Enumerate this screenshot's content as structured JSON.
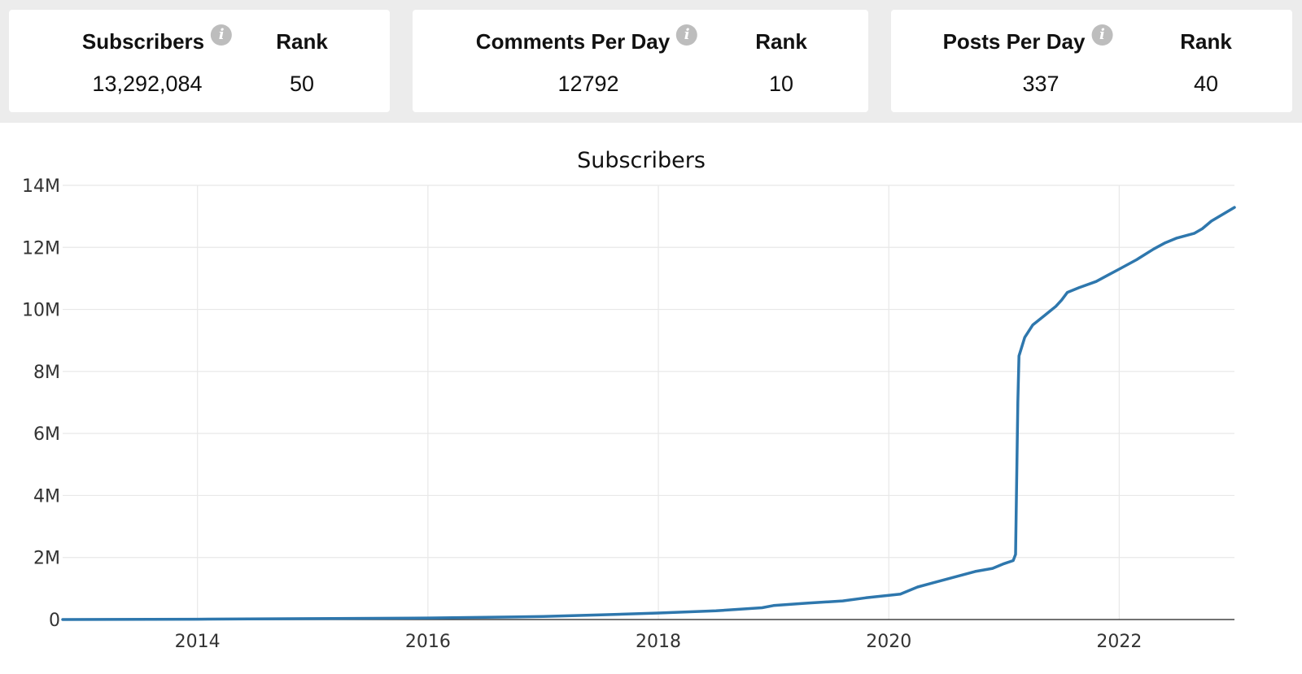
{
  "stats": [
    {
      "label": "Subscribers",
      "value": "13,292,084",
      "rank_label": "Rank",
      "rank": "50",
      "info_icon": "info-icon"
    },
    {
      "label": "Comments Per Day",
      "value": "12792",
      "rank_label": "Rank",
      "rank": "10",
      "info_icon": "info-icon"
    },
    {
      "label": "Posts Per Day",
      "value": "337",
      "rank_label": "Rank",
      "rank": "40",
      "info_icon": "info-icon"
    }
  ],
  "chart_data": {
    "type": "line",
    "title": "Subscribers",
    "xlabel": "",
    "ylabel": "",
    "xlim": [
      2012.83,
      2023.0
    ],
    "ylim": [
      0,
      14000000
    ],
    "x_ticks": [
      2014,
      2016,
      2018,
      2020,
      2022
    ],
    "x_tick_labels": [
      "2014",
      "2016",
      "2018",
      "2020",
      "2022"
    ],
    "y_ticks": [
      0,
      2000000,
      4000000,
      6000000,
      8000000,
      10000000,
      12000000,
      14000000
    ],
    "y_tick_labels": [
      "0",
      "2M",
      "4M",
      "6M",
      "8M",
      "10M",
      "12M",
      "14M"
    ],
    "grid": true,
    "line_color": "#2e77ad",
    "series": [
      {
        "x": [
          2012.83,
          2014.0,
          2015.0,
          2016.0,
          2016.5,
          2017.0,
          2017.5,
          2018.0,
          2018.5,
          2018.9,
          2019.0,
          2019.3,
          2019.6,
          2019.8,
          2020.1,
          2020.25,
          2020.5,
          2020.75,
          2020.9,
          2021.0,
          2021.08,
          2021.1,
          2021.12,
          2021.13,
          2021.18,
          2021.25,
          2021.35,
          2021.45,
          2021.5,
          2021.55,
          2021.65,
          2021.8,
          2021.9,
          2022.0,
          2022.15,
          2022.3,
          2022.4,
          2022.5,
          2022.65,
          2022.72,
          2022.8,
          2023.0
        ],
        "y": [
          0,
          10000,
          30000,
          50000,
          70000,
          100000,
          150000,
          210000,
          280000,
          380000,
          450000,
          530000,
          600000,
          700000,
          820000,
          1050000,
          1300000,
          1550000,
          1650000,
          1800000,
          1900000,
          2100000,
          7000000,
          8500000,
          9100000,
          9500000,
          9800000,
          10100000,
          10300000,
          10550000,
          10700000,
          10900000,
          11100000,
          11300000,
          11600000,
          11950000,
          12150000,
          12300000,
          12450000,
          12600000,
          12850000,
          13290000
        ]
      }
    ]
  }
}
